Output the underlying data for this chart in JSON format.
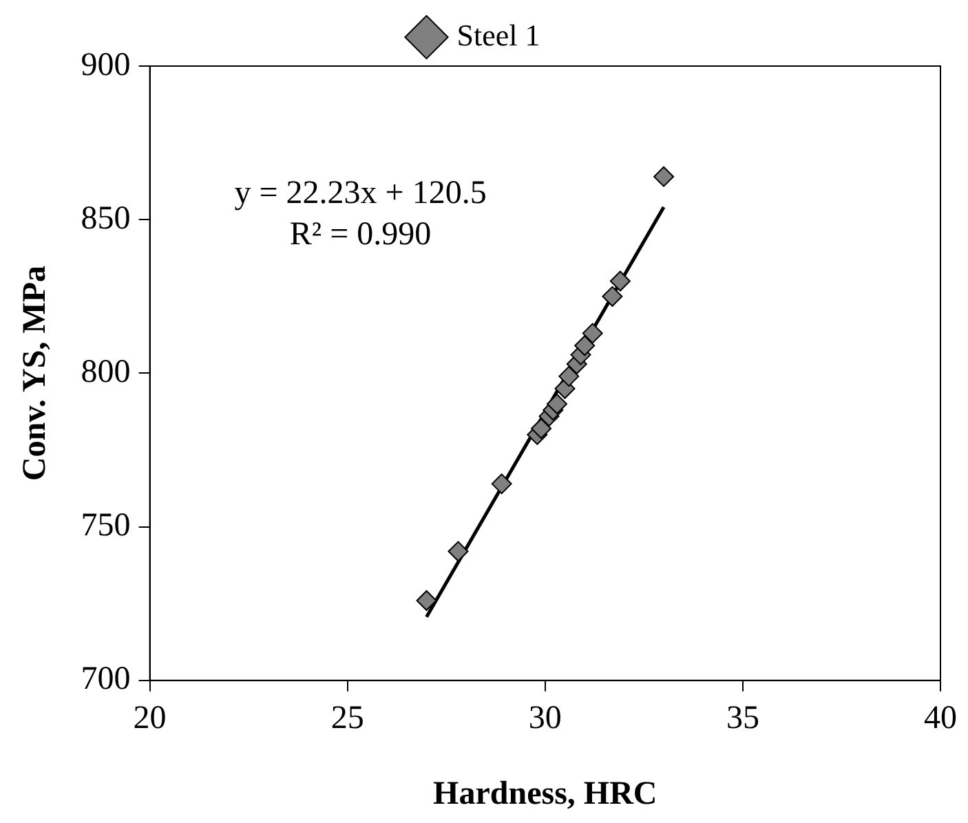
{
  "chart_data": {
    "type": "scatter",
    "xlabel": "Hardness, HRC",
    "ylabel": "Conv. YS, MPa",
    "xlim": [
      20,
      40
    ],
    "xticks": [
      20,
      25,
      30,
      35,
      40
    ],
    "ylim": [
      700,
      900
    ],
    "yticks": [
      700,
      750,
      800,
      850,
      900
    ],
    "grid": false,
    "legend": "top",
    "marker": "diamond",
    "annotations": [
      "y = 22.23x + 120.5",
      "R² = 0.990"
    ],
    "series": [
      {
        "name": "Steel 1",
        "color": "#808080",
        "x": [
          27.0,
          27.8,
          28.9,
          29.8,
          29.9,
          30.1,
          30.2,
          30.3,
          30.5,
          30.6,
          30.8,
          30.9,
          31.0,
          31.2,
          31.7,
          31.9,
          33.0
        ],
        "values": [
          726,
          742,
          764,
          780,
          782,
          786,
          788,
          790,
          795,
          799,
          803,
          806,
          809,
          813,
          825,
          830,
          864
        ]
      },
      {
        "type": "line",
        "color": "#000000",
        "marker": "none",
        "line_style": "solid",
        "x": [
          27.0,
          33.0
        ],
        "values": [
          720.7,
          854.1
        ]
      }
    ]
  }
}
